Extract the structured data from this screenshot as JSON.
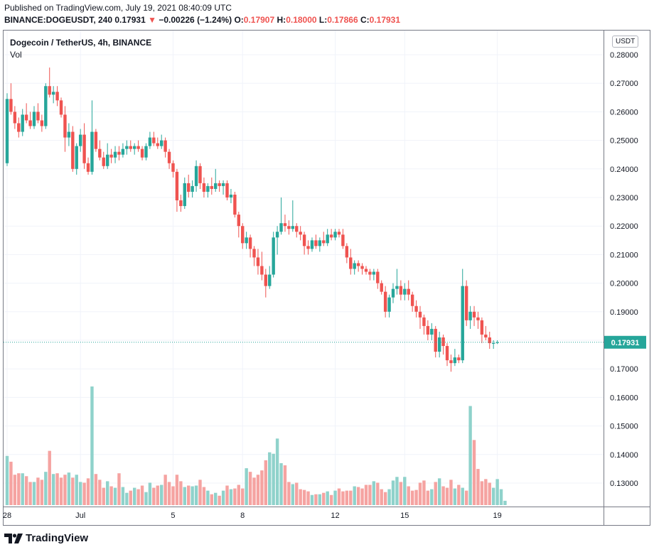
{
  "header": {
    "published": "Published on TradingView.com, July 19, 2021 08:40:09 UTC",
    "symbol": "BINANCE:DOGEUSDT, 240",
    "last": "0.17931",
    "change_arrow": "▼",
    "change": "−0.00226 (−1.24%)",
    "o_label": "O:",
    "o": "0.17907",
    "h_label": "H:",
    "h": "0.18000",
    "l_label": "L:",
    "l": "0.17866",
    "c_label": "C:",
    "c": "0.17931"
  },
  "pane": {
    "title": "Dogecoin / TetherUS, 4h, BINANCE",
    "volume_label": "Vol",
    "currency": "USDT",
    "price_tag": "0.17931"
  },
  "footer": {
    "brand": "TradingView"
  },
  "colors": {
    "up": "#26a69a",
    "down": "#ef5350",
    "vol_up": "#8fd2cb",
    "vol_down": "#f5a3a1",
    "last_line": "#26a69a"
  },
  "chart_data": {
    "type": "candlestick",
    "y_ticks": [
      "0.28000",
      "0.27000",
      "0.26000",
      "0.25000",
      "0.24000",
      "0.23000",
      "0.22000",
      "0.21000",
      "0.20000",
      "0.19000",
      "0.18000",
      "0.17000",
      "0.16000",
      "0.15000",
      "0.14000",
      "0.13000"
    ],
    "ylim": [
      0.1228,
      0.2818
    ],
    "x_ticks": [
      {
        "label": "28",
        "index": 0
      },
      {
        "label": "Jul",
        "index": 19
      },
      {
        "label": "5",
        "index": 43
      },
      {
        "label": "8",
        "index": 61
      },
      {
        "label": "12",
        "index": 85
      },
      {
        "label": "15",
        "index": 103
      },
      {
        "label": "19",
        "index": 127
      }
    ],
    "last_price": 0.17931,
    "candles": [
      [
        0.242,
        0.2665,
        0.241,
        0.2645
      ],
      [
        0.2645,
        0.27,
        0.259,
        0.26
      ],
      [
        0.26,
        0.262,
        0.254,
        0.256
      ],
      [
        0.256,
        0.258,
        0.251,
        0.253
      ],
      [
        0.253,
        0.261,
        0.2515,
        0.259
      ],
      [
        0.259,
        0.263,
        0.256,
        0.257
      ],
      [
        0.257,
        0.26,
        0.254,
        0.255
      ],
      [
        0.255,
        0.262,
        0.254,
        0.26
      ],
      [
        0.26,
        0.263,
        0.256,
        0.257
      ],
      [
        0.257,
        0.259,
        0.253,
        0.255
      ],
      [
        0.255,
        0.27,
        0.254,
        0.269
      ],
      [
        0.269,
        0.2755,
        0.265,
        0.266
      ],
      [
        0.266,
        0.269,
        0.263,
        0.267
      ],
      [
        0.267,
        0.269,
        0.262,
        0.264
      ],
      [
        0.264,
        0.265,
        0.258,
        0.259
      ],
      [
        0.259,
        0.262,
        0.246,
        0.251
      ],
      [
        0.251,
        0.256,
        0.248,
        0.253
      ],
      [
        0.253,
        0.255,
        0.239,
        0.24
      ],
      [
        0.24,
        0.249,
        0.238,
        0.248
      ],
      [
        0.248,
        0.254,
        0.246,
        0.252
      ],
      [
        0.252,
        0.256,
        0.24,
        0.242
      ],
      [
        0.242,
        0.244,
        0.238,
        0.239
      ],
      [
        0.239,
        0.264,
        0.238,
        0.253
      ],
      [
        0.253,
        0.254,
        0.246,
        0.247
      ],
      [
        0.247,
        0.25,
        0.243,
        0.244
      ],
      [
        0.244,
        0.246,
        0.24,
        0.241
      ],
      [
        0.241,
        0.249,
        0.24,
        0.245
      ],
      [
        0.245,
        0.247,
        0.242,
        0.244
      ],
      [
        0.244,
        0.248,
        0.242,
        0.246
      ],
      [
        0.246,
        0.248,
        0.243,
        0.245
      ],
      [
        0.245,
        0.249,
        0.244,
        0.247
      ],
      [
        0.247,
        0.25,
        0.245,
        0.248
      ],
      [
        0.248,
        0.25,
        0.246,
        0.247
      ],
      [
        0.247,
        0.249,
        0.245,
        0.248
      ],
      [
        0.248,
        0.25,
        0.246,
        0.247
      ],
      [
        0.247,
        0.248,
        0.243,
        0.244
      ],
      [
        0.244,
        0.249,
        0.243,
        0.248
      ],
      [
        0.248,
        0.253,
        0.247,
        0.251
      ],
      [
        0.251,
        0.253,
        0.248,
        0.249
      ],
      [
        0.249,
        0.251,
        0.247,
        0.248
      ],
      [
        0.248,
        0.252,
        0.247,
        0.25
      ],
      [
        0.25,
        0.251,
        0.244,
        0.246
      ],
      [
        0.246,
        0.247,
        0.24,
        0.242
      ],
      [
        0.242,
        0.243,
        0.237,
        0.239
      ],
      [
        0.239,
        0.24,
        0.225,
        0.229
      ],
      [
        0.229,
        0.231,
        0.225,
        0.227
      ],
      [
        0.227,
        0.237,
        0.226,
        0.235
      ],
      [
        0.235,
        0.238,
        0.23,
        0.232
      ],
      [
        0.232,
        0.236,
        0.23,
        0.234
      ],
      [
        0.234,
        0.243,
        0.232,
        0.241
      ],
      [
        0.241,
        0.242,
        0.233,
        0.235
      ],
      [
        0.235,
        0.237,
        0.23,
        0.232
      ],
      [
        0.232,
        0.235,
        0.23,
        0.234
      ],
      [
        0.234,
        0.237,
        0.231,
        0.233
      ],
      [
        0.233,
        0.24,
        0.232,
        0.235
      ],
      [
        0.235,
        0.236,
        0.232,
        0.234
      ],
      [
        0.234,
        0.236,
        0.231,
        0.235
      ],
      [
        0.235,
        0.236,
        0.229,
        0.23
      ],
      [
        0.23,
        0.233,
        0.228,
        0.231
      ],
      [
        0.231,
        0.232,
        0.223,
        0.224
      ],
      [
        0.224,
        0.225,
        0.216,
        0.22
      ],
      [
        0.22,
        0.221,
        0.212,
        0.214
      ],
      [
        0.214,
        0.218,
        0.212,
        0.216
      ],
      [
        0.216,
        0.217,
        0.209,
        0.212
      ],
      [
        0.212,
        0.213,
        0.206,
        0.209
      ],
      [
        0.209,
        0.212,
        0.203,
        0.206
      ],
      [
        0.206,
        0.211,
        0.201,
        0.203
      ],
      [
        0.203,
        0.205,
        0.195,
        0.199
      ],
      [
        0.199,
        0.206,
        0.198,
        0.203
      ],
      [
        0.203,
        0.218,
        0.202,
        0.216
      ],
      [
        0.216,
        0.22,
        0.21,
        0.218
      ],
      [
        0.218,
        0.23,
        0.217,
        0.221
      ],
      [
        0.221,
        0.224,
        0.218,
        0.22
      ],
      [
        0.22,
        0.222,
        0.217,
        0.219
      ],
      [
        0.219,
        0.229,
        0.218,
        0.22
      ],
      [
        0.22,
        0.221,
        0.216,
        0.218
      ],
      [
        0.218,
        0.22,
        0.215,
        0.217
      ],
      [
        0.217,
        0.218,
        0.21,
        0.213
      ],
      [
        0.213,
        0.215,
        0.21,
        0.212
      ],
      [
        0.212,
        0.216,
        0.211,
        0.215
      ],
      [
        0.215,
        0.217,
        0.212,
        0.213
      ],
      [
        0.213,
        0.216,
        0.211,
        0.215
      ],
      [
        0.215,
        0.218,
        0.213,
        0.214
      ],
      [
        0.214,
        0.219,
        0.213,
        0.217
      ],
      [
        0.217,
        0.219,
        0.215,
        0.216
      ],
      [
        0.216,
        0.219,
        0.215,
        0.218
      ],
      [
        0.218,
        0.219,
        0.216,
        0.217
      ],
      [
        0.217,
        0.219,
        0.212,
        0.213
      ],
      [
        0.213,
        0.214,
        0.207,
        0.209
      ],
      [
        0.209,
        0.212,
        0.203,
        0.205
      ],
      [
        0.205,
        0.208,
        0.203,
        0.207
      ],
      [
        0.207,
        0.208,
        0.204,
        0.206
      ],
      [
        0.206,
        0.207,
        0.203,
        0.205
      ],
      [
        0.205,
        0.206,
        0.203,
        0.204
      ],
      [
        0.204,
        0.205,
        0.201,
        0.203
      ],
      [
        0.203,
        0.205,
        0.201,
        0.204
      ],
      [
        0.204,
        0.205,
        0.198,
        0.2
      ],
      [
        0.2,
        0.201,
        0.196,
        0.197
      ],
      [
        0.197,
        0.199,
        0.188,
        0.19
      ],
      [
        0.19,
        0.196,
        0.188,
        0.195
      ],
      [
        0.195,
        0.2,
        0.193,
        0.198
      ],
      [
        0.198,
        0.205,
        0.196,
        0.199
      ],
      [
        0.199,
        0.201,
        0.194,
        0.196
      ],
      [
        0.196,
        0.2,
        0.194,
        0.198
      ],
      [
        0.198,
        0.201,
        0.194,
        0.196
      ],
      [
        0.196,
        0.197,
        0.19,
        0.192
      ],
      [
        0.192,
        0.194,
        0.188,
        0.19
      ],
      [
        0.19,
        0.192,
        0.184,
        0.188
      ],
      [
        0.188,
        0.189,
        0.182,
        0.185
      ],
      [
        0.185,
        0.187,
        0.18,
        0.182
      ],
      [
        0.182,
        0.186,
        0.18,
        0.184
      ],
      [
        0.184,
        0.185,
        0.174,
        0.176
      ],
      [
        0.176,
        0.183,
        0.174,
        0.181
      ],
      [
        0.181,
        0.182,
        0.175,
        0.178
      ],
      [
        0.178,
        0.179,
        0.171,
        0.173
      ],
      [
        0.173,
        0.175,
        0.169,
        0.172
      ],
      [
        0.172,
        0.177,
        0.171,
        0.174
      ],
      [
        0.174,
        0.175,
        0.172,
        0.173
      ],
      [
        0.173,
        0.205,
        0.172,
        0.199
      ],
      [
        0.199,
        0.201,
        0.185,
        0.187
      ],
      [
        0.187,
        0.192,
        0.184,
        0.19
      ],
      [
        0.19,
        0.192,
        0.185,
        0.188
      ],
      [
        0.188,
        0.19,
        0.184,
        0.187
      ],
      [
        0.187,
        0.188,
        0.179,
        0.182
      ],
      [
        0.182,
        0.185,
        0.18,
        0.181
      ],
      [
        0.181,
        0.183,
        0.177,
        0.179
      ],
      [
        0.179,
        0.18,
        0.177,
        0.179
      ],
      [
        0.1791,
        0.18,
        0.1787,
        0.1793
      ]
    ],
    "volume_scale": [
      0,
      0.164
    ],
    "volume": [
      0.068,
      0.06,
      0.042,
      0.044,
      0.044,
      0.04,
      0.032,
      0.032,
      0.038,
      0.035,
      0.046,
      0.075,
      0.043,
      0.044,
      0.038,
      0.042,
      0.045,
      0.038,
      0.042,
      0.032,
      0.031,
      0.037,
      0.164,
      0.043,
      0.035,
      0.024,
      0.033,
      0.026,
      0.024,
      0.044,
      0.025,
      0.017,
      0.02,
      0.024,
      0.022,
      0.027,
      0.018,
      0.031,
      0.024,
      0.027,
      0.028,
      0.042,
      0.032,
      0.026,
      0.042,
      0.033,
      0.025,
      0.027,
      0.026,
      0.027,
      0.035,
      0.025,
      0.02,
      0.015,
      0.017,
      0.013,
      0.02,
      0.027,
      0.022,
      0.023,
      0.028,
      0.023,
      0.051,
      0.046,
      0.038,
      0.042,
      0.048,
      0.062,
      0.073,
      0.071,
      0.092,
      0.058,
      0.055,
      0.032,
      0.029,
      0.031,
      0.022,
      0.021,
      0.019,
      0.014,
      0.015,
      0.015,
      0.017,
      0.019,
      0.014,
      0.02,
      0.023,
      0.019,
      0.02,
      0.02,
      0.026,
      0.025,
      0.023,
      0.028,
      0.028,
      0.033,
      0.031,
      0.022,
      0.018,
      0.022,
      0.034,
      0.039,
      0.032,
      0.039,
      0.026,
      0.02,
      0.021,
      0.031,
      0.034,
      0.02,
      0.022,
      0.032,
      0.037,
      0.026,
      0.024,
      0.035,
      0.023,
      0.028,
      0.024,
      0.02,
      0.137,
      0.09,
      0.05,
      0.033,
      0.036,
      0.031,
      0.024,
      0.036,
      0.022,
      0.006
    ]
  }
}
